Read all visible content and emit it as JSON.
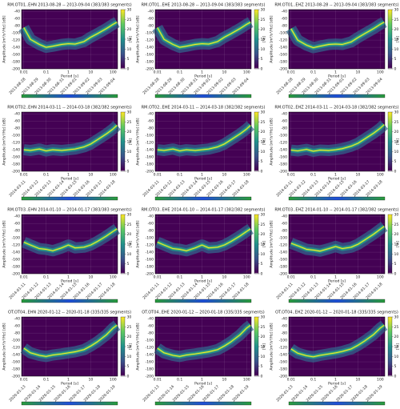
{
  "chart_data": [
    {
      "type": "ppsd",
      "title": "RM.OT01..EHN   2013-08-28 -- 2013-09-04   (383/383 segments)",
      "ylabel": "Amplitude [m²/s⁴/Hz] [dB]",
      "xlabel": "Period [s]",
      "clabel": "[%]",
      "xlim": [
        0.008,
        160
      ],
      "xticks": [
        0.01,
        0.1,
        1,
        10,
        100
      ],
      "ylim": [
        -200,
        -35
      ],
      "yticks": [
        -40,
        -60,
        -80,
        -100,
        -120,
        -140,
        -160,
        -180,
        -200
      ],
      "clim": [
        0,
        30
      ],
      "cticks": [
        0,
        5,
        10,
        15,
        20,
        25,
        30
      ],
      "grid": true,
      "color": "#fde725",
      "dates": [
        "2013-08-28",
        "2013-08-29",
        "2013-08-30",
        "2013-08-31",
        "2013-09-01",
        "2013-09-02",
        "2013-09-03",
        "2013-09-04"
      ],
      "x": [
        0.01,
        0.02,
        0.05,
        0.1,
        0.2,
        0.5,
        1,
        2,
        5,
        10,
        20,
        50,
        100,
        150
      ],
      "values": [
        -85,
        -118,
        -132,
        -140,
        -137,
        -132,
        -130,
        -131,
        -124,
        -112,
        -102,
        -88,
        -76,
        -70
      ]
    },
    {
      "type": "ppsd",
      "title": "RM.OT01..EHE   2013-08-28 -- 2013-09-04   (383/383 segments)",
      "ylabel": "Amplitude [m²/s⁴/Hz] [dB]",
      "xlabel": "Period [s]",
      "clabel": "[%]",
      "xlim": [
        0.008,
        160
      ],
      "xticks": [
        0.01,
        0.1,
        1,
        10,
        100
      ],
      "ylim": [
        -200,
        -35
      ],
      "yticks": [
        -40,
        -60,
        -80,
        -100,
        -120,
        -140,
        -160,
        -180,
        -200
      ],
      "clim": [
        0,
        30
      ],
      "cticks": [
        0,
        5,
        10,
        15,
        20,
        25,
        30
      ],
      "grid": true,
      "color": "#fde725",
      "dates": [
        "2013-08-28",
        "2013-08-29",
        "2013-08-30",
        "2013-08-31",
        "2013-09-01",
        "2013-09-02",
        "2013-09-03",
        "2013-09-04"
      ],
      "x": [
        0.01,
        0.02,
        0.05,
        0.1,
        0.2,
        0.5,
        1,
        2,
        5,
        10,
        20,
        50,
        100,
        150
      ],
      "values": [
        -85,
        -118,
        -132,
        -140,
        -137,
        -132,
        -130,
        -131,
        -124,
        -112,
        -102,
        -88,
        -76,
        -70
      ]
    },
    {
      "type": "ppsd",
      "title": "RM.OT01..EHZ   2013-08-28 -- 2013-09-04   (383/383 segments)",
      "ylabel": "Amplitude [m²/s⁴/Hz] [dB]",
      "xlabel": "Period [s]",
      "clabel": "[%]",
      "xlim": [
        0.008,
        160
      ],
      "xticks": [
        0.01,
        0.1,
        1,
        10,
        100
      ],
      "ylim": [
        -200,
        -35
      ],
      "yticks": [
        -40,
        -60,
        -80,
        -100,
        -120,
        -140,
        -160,
        -180,
        -200
      ],
      "clim": [
        0,
        30
      ],
      "cticks": [
        0,
        5,
        10,
        15,
        20,
        25,
        30
      ],
      "grid": true,
      "color": "#fde725",
      "dates": [
        "2013-08-28",
        "2013-08-29",
        "2013-08-30",
        "2013-08-31",
        "2013-09-01",
        "2013-09-02",
        "2013-09-03",
        "2013-09-04"
      ],
      "x": [
        0.01,
        0.02,
        0.05,
        0.1,
        0.2,
        0.5,
        1,
        2,
        5,
        10,
        20,
        50,
        100,
        150
      ],
      "values": [
        -88,
        -120,
        -134,
        -141,
        -137,
        -132,
        -131,
        -132,
        -125,
        -113,
        -102,
        -88,
        -76,
        -70
      ]
    },
    {
      "type": "ppsd",
      "title": "RM.OT02..EHN   2014-03-11 -- 2014-03-18   (382/382 segments)",
      "ylabel": "Amplitude [m²/s⁴/Hz] [dB]",
      "xlabel": "Period [s]",
      "clabel": "[%]",
      "xlim": [
        0.008,
        160
      ],
      "xticks": [
        0.01,
        0.1,
        1,
        10,
        100
      ],
      "ylim": [
        -200,
        -35
      ],
      "yticks": [
        -40,
        -60,
        -80,
        -100,
        -120,
        -140,
        -160,
        -180,
        -200
      ],
      "clim": [
        0,
        30
      ],
      "cticks": [
        0,
        5,
        10,
        15,
        20,
        25,
        30
      ],
      "grid": true,
      "color": "#fde725",
      "dates": [
        "2014-03-11",
        "2014-03-12",
        "2014-03-13",
        "2014-03-14",
        "2014-03-15",
        "2014-03-16",
        "2014-03-17",
        "2014-03-18"
      ],
      "x": [
        0.01,
        0.02,
        0.05,
        0.1,
        0.2,
        0.5,
        1,
        2,
        5,
        10,
        20,
        50,
        100,
        150
      ],
      "values": [
        -140,
        -142,
        -138,
        -143,
        -140,
        -142,
        -140,
        -138,
        -132,
        -124,
        -112,
        -96,
        -82,
        -72
      ]
    },
    {
      "type": "ppsd",
      "title": "RM.OT02..EHE   2014-03-11 -- 2014-03-18   (382/382 segments)",
      "ylabel": "Amplitude [m²/s⁴/Hz] [dB]",
      "xlabel": "Period [s]",
      "clabel": "[%]",
      "xlim": [
        0.008,
        160
      ],
      "xticks": [
        0.01,
        0.1,
        1,
        10,
        100
      ],
      "ylim": [
        -200,
        -35
      ],
      "yticks": [
        -40,
        -60,
        -80,
        -100,
        -120,
        -140,
        -160,
        -180,
        -200
      ],
      "clim": [
        0,
        30
      ],
      "cticks": [
        0,
        5,
        10,
        15,
        20,
        25,
        30
      ],
      "grid": true,
      "color": "#fde725",
      "dates": [
        "2014-03-11",
        "2014-03-12",
        "2014-03-13",
        "2014-03-14",
        "2014-03-15",
        "2014-03-16",
        "2014-03-17",
        "2014-03-18"
      ],
      "x": [
        0.01,
        0.02,
        0.05,
        0.1,
        0.2,
        0.5,
        1,
        2,
        5,
        10,
        20,
        50,
        100,
        150
      ],
      "values": [
        -140,
        -142,
        -138,
        -143,
        -140,
        -142,
        -140,
        -138,
        -132,
        -124,
        -112,
        -96,
        -82,
        -72
      ]
    },
    {
      "type": "ppsd",
      "title": "RM.OT02..EHZ   2014-03-11 -- 2014-03-18   (382/382 segments)",
      "ylabel": "Amplitude [m²/s⁴/Hz] [dB]",
      "xlabel": "Period [s]",
      "clabel": "[%]",
      "xlim": [
        0.008,
        160
      ],
      "xticks": [
        0.01,
        0.1,
        1,
        10,
        100
      ],
      "ylim": [
        -200,
        -35
      ],
      "yticks": [
        -40,
        -60,
        -80,
        -100,
        -120,
        -140,
        -160,
        -180,
        -200
      ],
      "clim": [
        0,
        30
      ],
      "cticks": [
        0,
        5,
        10,
        15,
        20,
        25,
        30
      ],
      "grid": true,
      "color": "#fde725",
      "dates": [
        "2014-03-11",
        "2014-03-12",
        "2014-03-13",
        "2014-03-14",
        "2014-03-15",
        "2014-03-16",
        "2014-03-17",
        "2014-03-18"
      ],
      "x": [
        0.01,
        0.02,
        0.05,
        0.1,
        0.2,
        0.5,
        1,
        2,
        5,
        10,
        20,
        50,
        100,
        150
      ],
      "values": [
        -141,
        -143,
        -139,
        -144,
        -141,
        -142,
        -140,
        -137,
        -130,
        -122,
        -110,
        -94,
        -80,
        -70
      ]
    },
    {
      "type": "ppsd",
      "title": "RM.OT03..EHN   2014-01-10 -- 2014-01-17   (383/383 segments)",
      "ylabel": "Amplitude [m²/s⁴/Hz] [dB]",
      "xlabel": "Period [s]",
      "clabel": "[%]",
      "xlim": [
        0.008,
        160
      ],
      "xticks": [
        0.01,
        0.1,
        1,
        10,
        100
      ],
      "ylim": [
        -200,
        -35
      ],
      "yticks": [
        -40,
        -60,
        -80,
        -100,
        -120,
        -140,
        -160,
        -180,
        -200
      ],
      "clim": [
        0,
        30
      ],
      "cticks": [
        0,
        5,
        10,
        15,
        20,
        25,
        30
      ],
      "grid": true,
      "color": "#fde725",
      "dates": [
        "2014-01-11",
        "2014-01-12",
        "2014-01-13",
        "2014-01-14",
        "2014-01-15",
        "2014-01-16",
        "2014-01-17",
        "2014-01-18"
      ],
      "x": [
        0.01,
        0.02,
        0.05,
        0.1,
        0.2,
        0.5,
        1,
        2,
        5,
        10,
        20,
        50,
        100,
        150
      ],
      "values": [
        -112,
        -120,
        -130,
        -132,
        -136,
        -128,
        -120,
        -128,
        -126,
        -120,
        -110,
        -95,
        -82,
        -75
      ]
    },
    {
      "type": "ppsd",
      "title": "RM.OT03..EHE   2014-01-10 -- 2014-01-17   (382/382 segments)",
      "ylabel": "Amplitude [m²/s⁴/Hz] [dB]",
      "xlabel": "Period [s]",
      "clabel": "[%]",
      "xlim": [
        0.008,
        160
      ],
      "xticks": [
        0.01,
        0.1,
        1,
        10,
        100
      ],
      "ylim": [
        -200,
        -35
      ],
      "yticks": [
        -40,
        -60,
        -80,
        -100,
        -120,
        -140,
        -160,
        -180,
        -200
      ],
      "clim": [
        0,
        30
      ],
      "cticks": [
        0,
        5,
        10,
        15,
        20,
        25,
        30
      ],
      "grid": true,
      "color": "#fde725",
      "dates": [
        "2014-01-11",
        "2014-01-12",
        "2014-01-13",
        "2014-01-14",
        "2014-01-15",
        "2014-01-16",
        "2014-01-17",
        "2014-01-18"
      ],
      "x": [
        0.01,
        0.02,
        0.05,
        0.1,
        0.2,
        0.5,
        1,
        2,
        5,
        10,
        20,
        50,
        100,
        150
      ],
      "values": [
        -112,
        -120,
        -130,
        -132,
        -136,
        -128,
        -120,
        -128,
        -126,
        -120,
        -110,
        -95,
        -82,
        -75
      ]
    },
    {
      "type": "ppsd",
      "title": "RM.OT03..EHZ   2014-01-10 -- 2014-01-17   (382/382 segments)",
      "ylabel": "Amplitude [m²/s⁴/Hz] [dB]",
      "xlabel": "Period [s]",
      "clabel": "[%]",
      "xlim": [
        0.008,
        160
      ],
      "xticks": [
        0.01,
        0.1,
        1,
        10,
        100
      ],
      "ylim": [
        -200,
        -35
      ],
      "yticks": [
        -40,
        -60,
        -80,
        -100,
        -120,
        -140,
        -160,
        -180,
        -200
      ],
      "clim": [
        0,
        30
      ],
      "cticks": [
        0,
        5,
        10,
        15,
        20,
        25,
        30
      ],
      "grid": true,
      "color": "#fde725",
      "dates": [
        "2014-01-11",
        "2014-01-12",
        "2014-01-13",
        "2014-01-14",
        "2014-01-15",
        "2014-01-16",
        "2014-01-17",
        "2014-01-18"
      ],
      "x": [
        0.01,
        0.02,
        0.05,
        0.1,
        0.2,
        0.5,
        1,
        2,
        5,
        10,
        20,
        50,
        100,
        150
      ],
      "values": [
        -115,
        -122,
        -132,
        -134,
        -137,
        -130,
        -124,
        -130,
        -126,
        -118,
        -106,
        -90,
        -76,
        -68
      ]
    },
    {
      "type": "ppsd",
      "title": "OT.OT04..EHN   2020-01-12 -- 2020-01-18   (335/335 segments)",
      "ylabel": "Amplitude [m²/s⁴/Hz] [dB]",
      "xlabel": "Period [s]",
      "clabel": "[%]",
      "xlim": [
        0.008,
        160
      ],
      "xticks": [
        0.01,
        0.1,
        1,
        10,
        100
      ],
      "ylim": [
        -200,
        -35
      ],
      "yticks": [
        -40,
        -60,
        -80,
        -100,
        -120,
        -140,
        -160,
        -180,
        -200
      ],
      "clim": [
        0,
        30
      ],
      "cticks": [
        0,
        5,
        10,
        15,
        20,
        25,
        30
      ],
      "grid": true,
      "color": "#fde725",
      "dates": [
        "2020-01-13",
        "2020-01-14",
        "2020-01-15",
        "2020-01-16",
        "2020-01-17",
        "2020-01-18",
        "2020-01-19"
      ],
      "x": [
        0.01,
        0.02,
        0.05,
        0.1,
        0.2,
        0.5,
        1,
        2,
        5,
        10,
        20,
        50,
        100,
        150
      ],
      "values": [
        -122,
        -135,
        -142,
        -145,
        -141,
        -138,
        -135,
        -132,
        -126,
        -116,
        -104,
        -85,
        -66,
        -58
      ]
    },
    {
      "type": "ppsd",
      "title": "OT.OT04..EHE   2020-01-12 -- 2020-01-18   (335/335 segments)",
      "ylabel": "Amplitude [m²/s⁴/Hz] [dB]",
      "xlabel": "Period [s]",
      "clabel": "[%]",
      "xlim": [
        0.008,
        160
      ],
      "xticks": [
        0.01,
        0.1,
        1,
        10,
        100
      ],
      "ylim": [
        -200,
        -35
      ],
      "yticks": [
        -40,
        -60,
        -80,
        -100,
        -120,
        -140,
        -160,
        -180,
        -200
      ],
      "clim": [
        0,
        30
      ],
      "cticks": [
        0,
        5,
        10,
        15,
        20,
        25,
        30
      ],
      "grid": true,
      "color": "#fde725",
      "dates": [
        "2020-01-13",
        "2020-01-14",
        "2020-01-15",
        "2020-01-16",
        "2020-01-17",
        "2020-01-18",
        "2020-01-19"
      ],
      "x": [
        0.01,
        0.02,
        0.05,
        0.1,
        0.2,
        0.5,
        1,
        2,
        5,
        10,
        20,
        50,
        100,
        150
      ],
      "values": [
        -122,
        -135,
        -142,
        -145,
        -141,
        -138,
        -135,
        -132,
        -126,
        -116,
        -104,
        -85,
        -66,
        -58
      ]
    },
    {
      "type": "ppsd",
      "title": "OT.OT04..EHZ   2020-01-12 -- 2020-01-18   (335/335 segments)",
      "ylabel": "Amplitude [m²/s⁴/Hz] [dB]",
      "xlabel": "Period [s]",
      "clabel": "[%]",
      "xlim": [
        0.008,
        160
      ],
      "xticks": [
        0.01,
        0.1,
        1,
        10,
        100
      ],
      "ylim": [
        -200,
        -35
      ],
      "yticks": [
        -40,
        -60,
        -80,
        -100,
        -120,
        -140,
        -160,
        -180,
        -200
      ],
      "clim": [
        0,
        30
      ],
      "cticks": [
        0,
        5,
        10,
        15,
        20,
        25,
        30
      ],
      "grid": true,
      "color": "#fde725",
      "dates": [
        "2020-01-13",
        "2020-01-14",
        "2020-01-15",
        "2020-01-16",
        "2020-01-17",
        "2020-01-18",
        "2020-01-19"
      ],
      "x": [
        0.01,
        0.02,
        0.05,
        0.1,
        0.2,
        0.5,
        1,
        2,
        5,
        10,
        20,
        50,
        100,
        150
      ],
      "values": [
        -124,
        -136,
        -143,
        -146,
        -142,
        -138,
        -135,
        -131,
        -124,
        -114,
        -102,
        -84,
        -66,
        -58
      ]
    }
  ]
}
